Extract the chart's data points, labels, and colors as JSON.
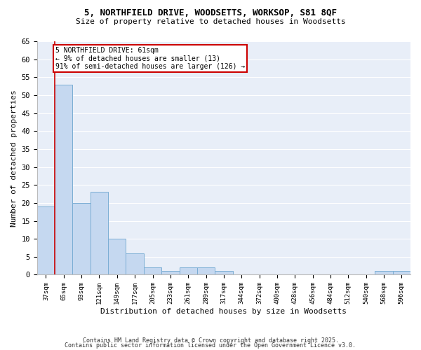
{
  "title_line1": "5, NORTHFIELD DRIVE, WOODSETTS, WORKSOP, S81 8QF",
  "title_line2": "Size of property relative to detached houses in Woodsetts",
  "xlabel": "Distribution of detached houses by size in Woodsetts",
  "ylabel": "Number of detached properties",
  "bar_labels": [
    "37sqm",
    "65sqm",
    "93sqm",
    "121sqm",
    "149sqm",
    "177sqm",
    "205sqm",
    "233sqm",
    "261sqm",
    "289sqm",
    "317sqm",
    "344sqm",
    "372sqm",
    "400sqm",
    "428sqm",
    "456sqm",
    "484sqm",
    "512sqm",
    "540sqm",
    "568sqm",
    "596sqm"
  ],
  "bar_heights": [
    19,
    53,
    20,
    23,
    10,
    6,
    2,
    1,
    2,
    2,
    1,
    0,
    0,
    0,
    0,
    0,
    0,
    0,
    0,
    1,
    1
  ],
  "bar_color": "#c5d8f0",
  "bar_edge_color": "#7aadd4",
  "annotation_title": "5 NORTHFIELD DRIVE: 61sqm",
  "annotation_line1": "← 9% of detached houses are smaller (13)",
  "annotation_line2": "91% of semi-detached houses are larger (126) →",
  "annotation_box_color": "#ffffff",
  "annotation_box_edge": "#cc0000",
  "red_line_color": "#cc0000",
  "background_color": "#e8eef8",
  "grid_color": "#ffffff",
  "ylim": [
    0,
    65
  ],
  "yticks": [
    0,
    5,
    10,
    15,
    20,
    25,
    30,
    35,
    40,
    45,
    50,
    55,
    60,
    65
  ],
  "footer_line1": "Contains HM Land Registry data © Crown copyright and database right 2025.",
  "footer_line2": "Contains public sector information licensed under the Open Government Licence v3.0."
}
